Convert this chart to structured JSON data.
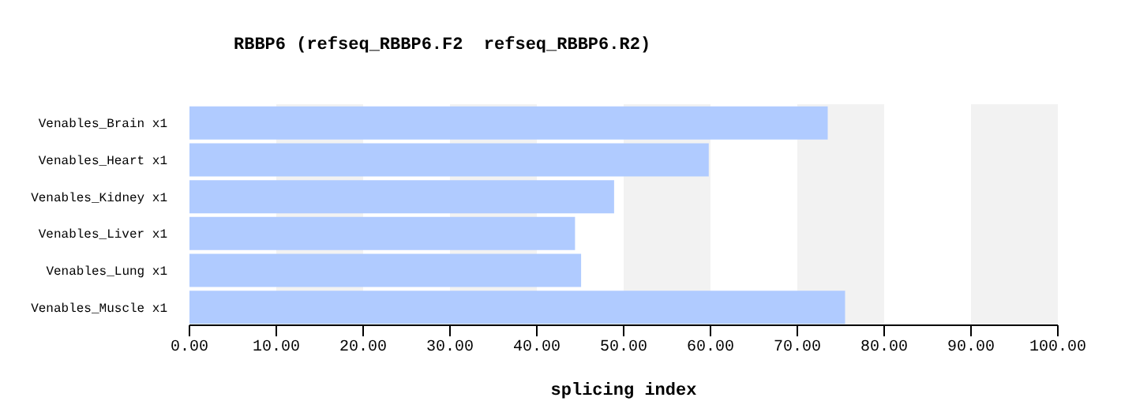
{
  "chart_data": {
    "type": "bar",
    "orientation": "horizontal",
    "title": "RBBP6 (refseq_RBBP6.F2  refseq_RBBP6.R2)",
    "xlabel": "splicing index",
    "categories": [
      "Venables_Brain x1",
      "Venables_Heart x1",
      "Venables_Kidney x1",
      "Venables_Liver x1",
      "Venables_Lung x1",
      "Venables_Muscle x1"
    ],
    "values": [
      73.5,
      59.8,
      48.9,
      44.4,
      45.1,
      75.5
    ],
    "color": "#b0cbff",
    "xlim": [
      0,
      100
    ],
    "xticks": [
      {
        "value": 0,
        "label": "0.00"
      },
      {
        "value": 10,
        "label": "10.00"
      },
      {
        "value": 20,
        "label": "20.00"
      },
      {
        "value": 30,
        "label": "30.00"
      },
      {
        "value": 40,
        "label": "40.00"
      },
      {
        "value": 50,
        "label": "50.00"
      },
      {
        "value": 60,
        "label": "60.00"
      },
      {
        "value": 70,
        "label": "70.00"
      },
      {
        "value": 80,
        "label": "80.00"
      },
      {
        "value": 90,
        "label": "90.00"
      },
      {
        "value": 100,
        "label": "100.00"
      }
    ],
    "bands": [
      {
        "axis": "x",
        "from": 10,
        "to": 20,
        "color": "#f2f2f2"
      },
      {
        "axis": "x",
        "from": 30,
        "to": 40,
        "color": "#f2f2f2"
      },
      {
        "axis": "x",
        "from": 50,
        "to": 60,
        "color": "#f2f2f2"
      },
      {
        "axis": "x",
        "from": 70,
        "to": 80,
        "color": "#f2f2f2"
      },
      {
        "axis": "x",
        "from": 90,
        "to": 100,
        "color": "#f2f2f2"
      }
    ],
    "grid": false
  }
}
